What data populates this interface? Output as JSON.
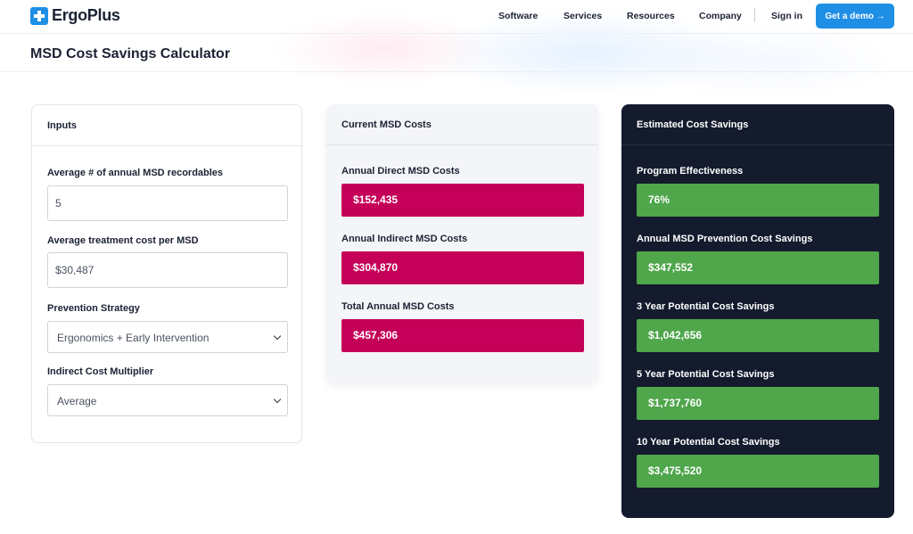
{
  "brand": {
    "name": "ErgoPlus",
    "color": "#1f8fe6"
  },
  "nav": {
    "items": [
      "Software",
      "Services",
      "Resources",
      "Company"
    ],
    "sign_in": "Sign in",
    "cta": "Get a demo →"
  },
  "page": {
    "title": "MSD Cost Savings Calculator"
  },
  "inputs": {
    "title": "Inputs",
    "recordables_label": "Average # of annual MSD recordables",
    "recordables_value": "5",
    "treatment_label": "Average treatment cost per MSD",
    "treatment_value": "$30,487",
    "strategy_label": "Prevention Strategy",
    "strategy_value": "Ergonomics + Early Intervention",
    "multiplier_label": "Indirect Cost Multiplier",
    "multiplier_value": "Average"
  },
  "current": {
    "title": "Current MSD Costs",
    "color": "#c40058",
    "items": [
      {
        "label": "Annual Direct MSD Costs",
        "value": "$152,435"
      },
      {
        "label": "Annual Indirect MSD Costs",
        "value": "$304,870"
      },
      {
        "label": "Total Annual MSD Costs",
        "value": "$457,306"
      }
    ]
  },
  "savings": {
    "title": "Estimated Cost Savings",
    "color": "#4fa64b",
    "items": [
      {
        "label": "Program Effectiveness",
        "value": "76%"
      },
      {
        "label": "Annual MSD Prevention Cost Savings",
        "value": "$347,552"
      },
      {
        "label": "3 Year Potential Cost Savings",
        "value": "$1,042,656"
      },
      {
        "label": "5 Year Potential Cost Savings",
        "value": "$1,737,760"
      },
      {
        "label": "10 Year Potential Cost Savings",
        "value": "$3,475,520"
      }
    ]
  }
}
